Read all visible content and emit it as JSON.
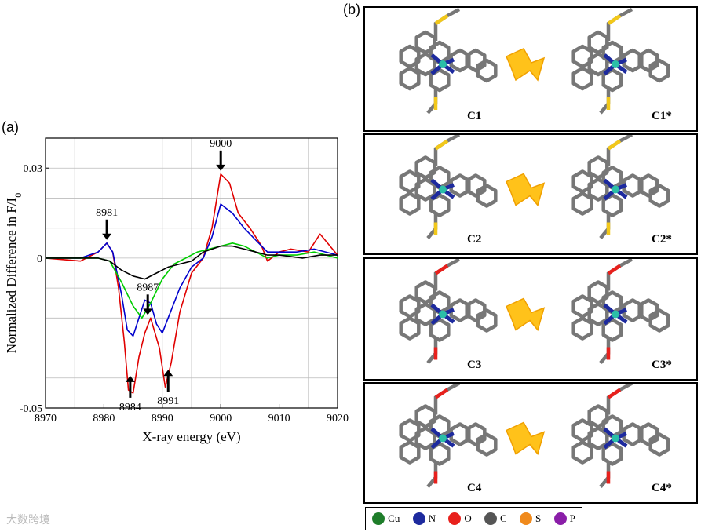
{
  "labels": {
    "a": "(a)",
    "b": "(b)"
  },
  "chart_data": {
    "type": "line",
    "xlabel": "X-ray energy (eV)",
    "ylabel": "Normalized Difference in F/I",
    "ylabel_sub": "0",
    "xlim": [
      8970,
      9020
    ],
    "ylim": [
      -0.05,
      0.04
    ],
    "x_ticks": [
      "8970",
      "8980",
      "8990",
      "9000",
      "9010",
      "9020"
    ],
    "y_ticks": [
      {
        "value": 0.03,
        "label": "0.03"
      },
      {
        "value": 0,
        "label": "0"
      },
      {
        "value": -0.05,
        "label": "-0.05"
      }
    ],
    "grid": true,
    "series": [
      {
        "color": "#e00000",
        "points": [
          [
            8970,
            0
          ],
          [
            8976,
            -0.001
          ],
          [
            8979,
            0.002
          ],
          [
            8980.5,
            0.005
          ],
          [
            8981.5,
            0.002
          ],
          [
            8982.5,
            -0.01
          ],
          [
            8983.5,
            -0.028
          ],
          [
            8984.2,
            -0.044
          ],
          [
            8985,
            -0.045
          ],
          [
            8986,
            -0.033
          ],
          [
            8987,
            -0.025
          ],
          [
            8988,
            -0.02
          ],
          [
            8989.5,
            -0.03
          ],
          [
            8990.5,
            -0.043
          ],
          [
            8991.5,
            -0.035
          ],
          [
            8993,
            -0.018
          ],
          [
            8995,
            -0.005
          ],
          [
            8997,
            0.0
          ],
          [
            8998.5,
            0.01
          ],
          [
            8999.5,
            0.022
          ],
          [
            9000,
            0.028
          ],
          [
            9001.5,
            0.025
          ],
          [
            9003,
            0.015
          ],
          [
            9005,
            0.01
          ],
          [
            9007,
            0.004
          ],
          [
            9008,
            -0.001
          ],
          [
            9010,
            0.002
          ],
          [
            9012,
            0.003
          ],
          [
            9015,
            0.002
          ],
          [
            9017,
            0.008
          ],
          [
            9020,
            0.001
          ]
        ]
      },
      {
        "color": "#0000cc",
        "points": [
          [
            8970,
            0
          ],
          [
            8976,
            0
          ],
          [
            8979,
            0.002
          ],
          [
            8980.5,
            0.005
          ],
          [
            8981.5,
            0.002
          ],
          [
            8983,
            -0.012
          ],
          [
            8984,
            -0.024
          ],
          [
            8985,
            -0.026
          ],
          [
            8986,
            -0.02
          ],
          [
            8987,
            -0.014
          ],
          [
            8988,
            -0.015
          ],
          [
            8989,
            -0.022
          ],
          [
            8990,
            -0.025
          ],
          [
            8991,
            -0.02
          ],
          [
            8993,
            -0.01
          ],
          [
            8995,
            -0.003
          ],
          [
            8997,
            0.0
          ],
          [
            8998.5,
            0.007
          ],
          [
            9000,
            0.018
          ],
          [
            9002,
            0.015
          ],
          [
            9004,
            0.01
          ],
          [
            9006,
            0.006
          ],
          [
            9008,
            0.002
          ],
          [
            9010,
            0.002
          ],
          [
            9013,
            0.002
          ],
          [
            9016,
            0.003
          ],
          [
            9020,
            0.001
          ]
        ]
      },
      {
        "color": "#00cc00",
        "points": [
          [
            8970,
            0
          ],
          [
            8976,
            0
          ],
          [
            8979,
            0.0
          ],
          [
            8981,
            -0.001
          ],
          [
            8983,
            -0.008
          ],
          [
            8985,
            -0.016
          ],
          [
            8986.5,
            -0.02
          ],
          [
            8988,
            -0.015
          ],
          [
            8990,
            -0.007
          ],
          [
            8992,
            -0.002
          ],
          [
            8994,
            0.0
          ],
          [
            8996,
            0.002
          ],
          [
            8998,
            0.003
          ],
          [
            9000,
            0.004
          ],
          [
            9002,
            0.005
          ],
          [
            9004,
            0.004
          ],
          [
            9006,
            0.002
          ],
          [
            9008,
            0.0
          ],
          [
            9010,
            0.001
          ],
          [
            9013,
            0.001
          ],
          [
            9016,
            0.002
          ],
          [
            9020,
            0.0
          ]
        ]
      },
      {
        "color": "#000000",
        "points": [
          [
            8970,
            0
          ],
          [
            8976,
            0
          ],
          [
            8979,
            0
          ],
          [
            8981,
            -0.001
          ],
          [
            8983,
            -0.004
          ],
          [
            8985,
            -0.006
          ],
          [
            8987,
            -0.007
          ],
          [
            8989,
            -0.005
          ],
          [
            8991,
            -0.003
          ],
          [
            8993,
            -0.002
          ],
          [
            8995,
            -0.001
          ],
          [
            8997,
            0.002
          ],
          [
            9000,
            0.004
          ],
          [
            9002,
            0.004
          ],
          [
            9004,
            0.003
          ],
          [
            9006,
            0.002
          ],
          [
            9008,
            0.001
          ],
          [
            9010,
            0.001
          ],
          [
            9014,
            0.0
          ],
          [
            9017,
            0.001
          ],
          [
            9020,
            0.001
          ]
        ]
      }
    ],
    "annotations": [
      {
        "label": "8981",
        "x": 8980.5,
        "y": 0.005,
        "dir": "down"
      },
      {
        "label": "8987",
        "x": 8987.5,
        "y": -0.02,
        "dir": "down"
      },
      {
        "label": "8984",
        "x": 8984.5,
        "y": -0.045,
        "dir": "up"
      },
      {
        "label": "8991",
        "x": 8991,
        "y": -0.043,
        "dir": "up"
      },
      {
        "label": "9000",
        "x": 9000,
        "y": 0.028,
        "dir": "down"
      }
    ]
  },
  "panels": [
    {
      "left": "C1",
      "right": "C1*"
    },
    {
      "left": "C2",
      "right": "C2*"
    },
    {
      "left": "C3",
      "right": "C3*"
    },
    {
      "left": "C4",
      "right": "C4*"
    }
  ],
  "legend": [
    {
      "symbol": "Cu",
      "color": "#1e7d2a"
    },
    {
      "symbol": "N",
      "color": "#1d2a9e"
    },
    {
      "symbol": "O",
      "color": "#e8201c"
    },
    {
      "symbol": "C",
      "color": "#555555"
    },
    {
      "symbol": "S",
      "color": "#f08a1c"
    },
    {
      "symbol": "P",
      "color": "#8a1ea8"
    }
  ],
  "watermark": "大数跨境"
}
